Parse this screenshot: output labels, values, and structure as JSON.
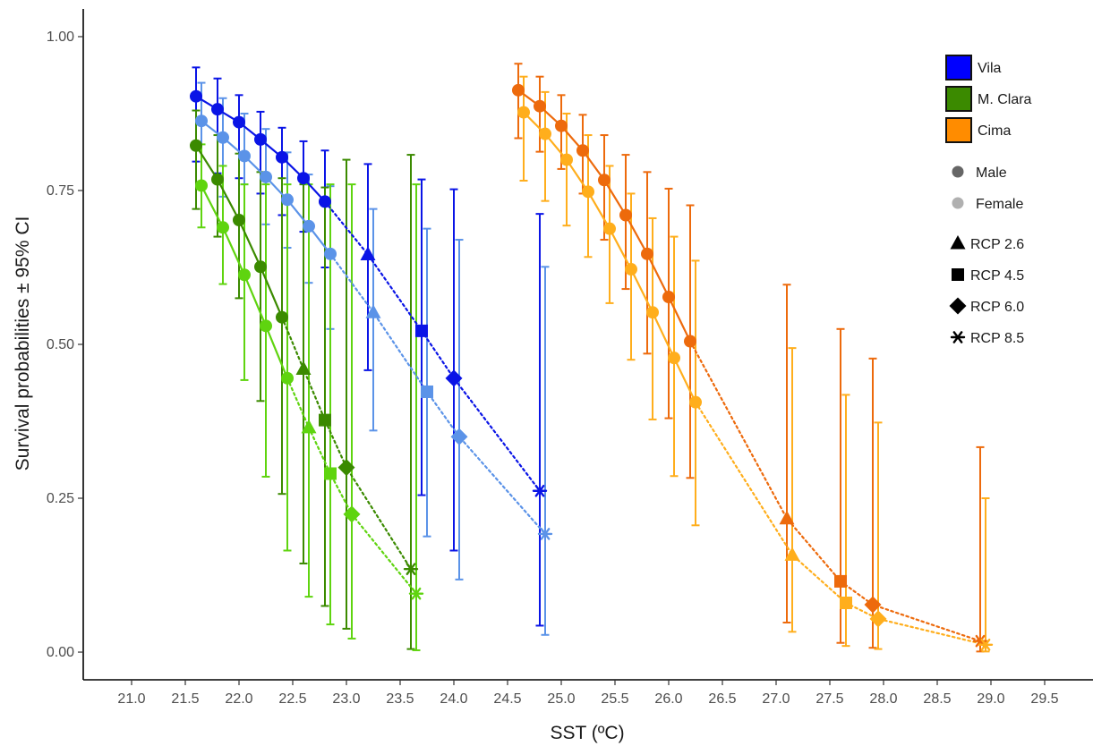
{
  "chart_data": {
    "type": "scatter",
    "xlabel": "SST (ºC)",
    "ylabel": "Survival probabilities ± 95% CI",
    "xlim": [
      20.55,
      29.95
    ],
    "ylim": [
      -0.045,
      1.045
    ],
    "x_ticks": [
      "21.0",
      "21.5",
      "22.0",
      "22.5",
      "23.0",
      "23.5",
      "24.0",
      "24.5",
      "25.0",
      "25.5",
      "26.0",
      "26.5",
      "27.0",
      "27.5",
      "28.0",
      "28.5",
      "29.0",
      "29.5"
    ],
    "y_ticks": [
      "0.00",
      "0.25",
      "0.50",
      "0.75",
      "1.00"
    ],
    "grid": false,
    "legend_position": "top-right",
    "legend_sites": [
      {
        "label": "Vila",
        "color": "#0000ff"
      },
      {
        "label": "M. Clara",
        "color": "#3b8a00"
      },
      {
        "label": "Cima",
        "color": "#ff8c00"
      }
    ],
    "legend_sex": [
      {
        "label": "Male",
        "color": "#666666"
      },
      {
        "label": "Female",
        "color": "#b0b0b0"
      }
    ],
    "legend_scenarios": [
      {
        "label": "RCP 2.6",
        "shape": "triangle"
      },
      {
        "label": "RCP 4.5",
        "shape": "square"
      },
      {
        "label": "RCP 6.0",
        "shape": "diamond"
      },
      {
        "label": "RCP 8.5",
        "shape": "asterisk"
      }
    ],
    "series": [
      {
        "site": "Vila",
        "sex": "Male",
        "color": "#0a14e6",
        "observed": [
          {
            "x": 21.6,
            "y": 0.903,
            "lo": 0.797,
            "hi": 0.95
          },
          {
            "x": 21.8,
            "y": 0.882,
            "lo": 0.778,
            "hi": 0.932
          },
          {
            "x": 22.0,
            "y": 0.861,
            "lo": 0.77,
            "hi": 0.905
          },
          {
            "x": 22.2,
            "y": 0.833,
            "lo": 0.745,
            "hi": 0.878
          },
          {
            "x": 22.4,
            "y": 0.804,
            "lo": 0.71,
            "hi": 0.852
          },
          {
            "x": 22.6,
            "y": 0.77,
            "lo": 0.683,
            "hi": 0.83
          },
          {
            "x": 22.8,
            "y": 0.732,
            "lo": 0.625,
            "hi": 0.815
          }
        ],
        "scenarios": [
          {
            "rcp": "RCP 2.6",
            "x": 23.2,
            "y": 0.646,
            "lo": 0.458,
            "hi": 0.793
          },
          {
            "rcp": "RCP 4.5",
            "x": 23.7,
            "y": 0.522,
            "lo": 0.255,
            "hi": 0.768
          },
          {
            "rcp": "RCP 6.0",
            "x": 24.0,
            "y": 0.445,
            "lo": 0.165,
            "hi": 0.752
          },
          {
            "rcp": "RCP 8.5",
            "x": 24.8,
            "y": 0.262,
            "lo": 0.043,
            "hi": 0.712
          }
        ]
      },
      {
        "site": "Vila",
        "sex": "Female",
        "color": "#5b93e8",
        "observed": [
          {
            "x": 21.65,
            "y": 0.863,
            "lo": 0.76,
            "hi": 0.925
          },
          {
            "x": 21.85,
            "y": 0.836,
            "lo": 0.74,
            "hi": 0.9
          },
          {
            "x": 22.05,
            "y": 0.806,
            "lo": 0.76,
            "hi": 0.875
          },
          {
            "x": 22.25,
            "y": 0.772,
            "lo": 0.695,
            "hi": 0.85
          },
          {
            "x": 22.45,
            "y": 0.735,
            "lo": 0.657,
            "hi": 0.812
          },
          {
            "x": 22.65,
            "y": 0.692,
            "lo": 0.6,
            "hi": 0.776
          },
          {
            "x": 22.85,
            "y": 0.647,
            "lo": 0.525,
            "hi": 0.757
          }
        ],
        "scenarios": [
          {
            "rcp": "RCP 2.6",
            "x": 23.25,
            "y": 0.552,
            "lo": 0.36,
            "hi": 0.72
          },
          {
            "rcp": "RCP 4.5",
            "x": 23.75,
            "y": 0.423,
            "lo": 0.188,
            "hi": 0.688
          },
          {
            "rcp": "RCP 6.0",
            "x": 24.05,
            "y": 0.35,
            "lo": 0.118,
            "hi": 0.67
          },
          {
            "rcp": "RCP 8.5",
            "x": 24.85,
            "y": 0.192,
            "lo": 0.028,
            "hi": 0.626
          }
        ]
      },
      {
        "site": "M. Clara",
        "sex": "Male",
        "color": "#3b8a00",
        "observed": [
          {
            "x": 21.6,
            "y": 0.823,
            "lo": 0.72,
            "hi": 0.88
          },
          {
            "x": 21.8,
            "y": 0.768,
            "lo": 0.675,
            "hi": 0.84
          },
          {
            "x": 22.0,
            "y": 0.702,
            "lo": 0.575,
            "hi": 0.81
          },
          {
            "x": 22.2,
            "y": 0.626,
            "lo": 0.408,
            "hi": 0.78
          },
          {
            "x": 22.4,
            "y": 0.544,
            "lo": 0.257,
            "hi": 0.77
          }
        ],
        "scenarios": [
          {
            "rcp": "RCP 2.6",
            "x": 22.6,
            "y": 0.46,
            "lo": 0.144,
            "hi": 0.76
          },
          {
            "rcp": "RCP 4.5",
            "x": 22.8,
            "y": 0.377,
            "lo": 0.075,
            "hi": 0.755
          },
          {
            "rcp": "RCP 6.0",
            "x": 23.0,
            "y": 0.3,
            "lo": 0.038,
            "hi": 0.8
          },
          {
            "rcp": "RCP 8.5",
            "x": 23.6,
            "y": 0.135,
            "lo": 0.005,
            "hi": 0.808
          }
        ]
      },
      {
        "site": "M. Clara",
        "sex": "Female",
        "color": "#5fd40f",
        "observed": [
          {
            "x": 21.65,
            "y": 0.758,
            "lo": 0.69,
            "hi": 0.825
          },
          {
            "x": 21.85,
            "y": 0.69,
            "lo": 0.598,
            "hi": 0.79
          },
          {
            "x": 22.05,
            "y": 0.613,
            "lo": 0.442,
            "hi": 0.76
          },
          {
            "x": 22.25,
            "y": 0.53,
            "lo": 0.285,
            "hi": 0.76
          },
          {
            "x": 22.45,
            "y": 0.445,
            "lo": 0.165,
            "hi": 0.76
          }
        ],
        "scenarios": [
          {
            "rcp": "RCP 2.6",
            "x": 22.65,
            "y": 0.365,
            "lo": 0.09,
            "hi": 0.76
          },
          {
            "rcp": "RCP 4.5",
            "x": 22.85,
            "y": 0.29,
            "lo": 0.045,
            "hi": 0.76
          },
          {
            "rcp": "RCP 6.0",
            "x": 23.05,
            "y": 0.224,
            "lo": 0.022,
            "hi": 0.76
          },
          {
            "rcp": "RCP 8.5",
            "x": 23.65,
            "y": 0.095,
            "lo": 0.003,
            "hi": 0.76
          }
        ]
      },
      {
        "site": "Cima",
        "sex": "Male",
        "color": "#ed6a0c",
        "observed": [
          {
            "x": 24.6,
            "y": 0.913,
            "lo": 0.835,
            "hi": 0.956
          },
          {
            "x": 24.8,
            "y": 0.887,
            "lo": 0.813,
            "hi": 0.935
          },
          {
            "x": 25.0,
            "y": 0.855,
            "lo": 0.785,
            "hi": 0.905
          },
          {
            "x": 25.2,
            "y": 0.815,
            "lo": 0.745,
            "hi": 0.873
          },
          {
            "x": 25.4,
            "y": 0.767,
            "lo": 0.67,
            "hi": 0.84
          },
          {
            "x": 25.6,
            "y": 0.71,
            "lo": 0.59,
            "hi": 0.808
          },
          {
            "x": 25.8,
            "y": 0.647,
            "lo": 0.485,
            "hi": 0.78
          },
          {
            "x": 26.0,
            "y": 0.577,
            "lo": 0.38,
            "hi": 0.753
          },
          {
            "x": 26.2,
            "y": 0.505,
            "lo": 0.283,
            "hi": 0.726
          }
        ],
        "scenarios": [
          {
            "rcp": "RCP 2.6",
            "x": 27.1,
            "y": 0.217,
            "lo": 0.048,
            "hi": 0.597
          },
          {
            "rcp": "RCP 4.5",
            "x": 27.6,
            "y": 0.115,
            "lo": 0.015,
            "hi": 0.525
          },
          {
            "rcp": "RCP 6.0",
            "x": 27.9,
            "y": 0.077,
            "lo": 0.007,
            "hi": 0.477
          },
          {
            "rcp": "RCP 8.5",
            "x": 28.9,
            "y": 0.018,
            "lo": 0.001,
            "hi": 0.333
          }
        ]
      },
      {
        "site": "Cima",
        "sex": "Female",
        "color": "#ffae1c",
        "observed": [
          {
            "x": 24.65,
            "y": 0.877,
            "lo": 0.766,
            "hi": 0.935
          },
          {
            "x": 24.85,
            "y": 0.842,
            "lo": 0.733,
            "hi": 0.91
          },
          {
            "x": 25.05,
            "y": 0.8,
            "lo": 0.693,
            "hi": 0.875
          },
          {
            "x": 25.25,
            "y": 0.748,
            "lo": 0.642,
            "hi": 0.84
          },
          {
            "x": 25.45,
            "y": 0.688,
            "lo": 0.567,
            "hi": 0.79
          },
          {
            "x": 25.65,
            "y": 0.622,
            "lo": 0.475,
            "hi": 0.745
          },
          {
            "x": 25.85,
            "y": 0.552,
            "lo": 0.378,
            "hi": 0.705
          },
          {
            "x": 26.05,
            "y": 0.478,
            "lo": 0.286,
            "hi": 0.675
          },
          {
            "x": 26.25,
            "y": 0.406,
            "lo": 0.206,
            "hi": 0.636
          }
        ],
        "scenarios": [
          {
            "rcp": "RCP 2.6",
            "x": 27.15,
            "y": 0.158,
            "lo": 0.033,
            "hi": 0.494
          },
          {
            "rcp": "RCP 4.5",
            "x": 27.65,
            "y": 0.08,
            "lo": 0.01,
            "hi": 0.418
          },
          {
            "rcp": "RCP 6.0",
            "x": 27.95,
            "y": 0.054,
            "lo": 0.005,
            "hi": 0.373
          },
          {
            "rcp": "RCP 8.5",
            "x": 28.95,
            "y": 0.012,
            "lo": 0.001,
            "hi": 0.25
          }
        ]
      }
    ]
  }
}
